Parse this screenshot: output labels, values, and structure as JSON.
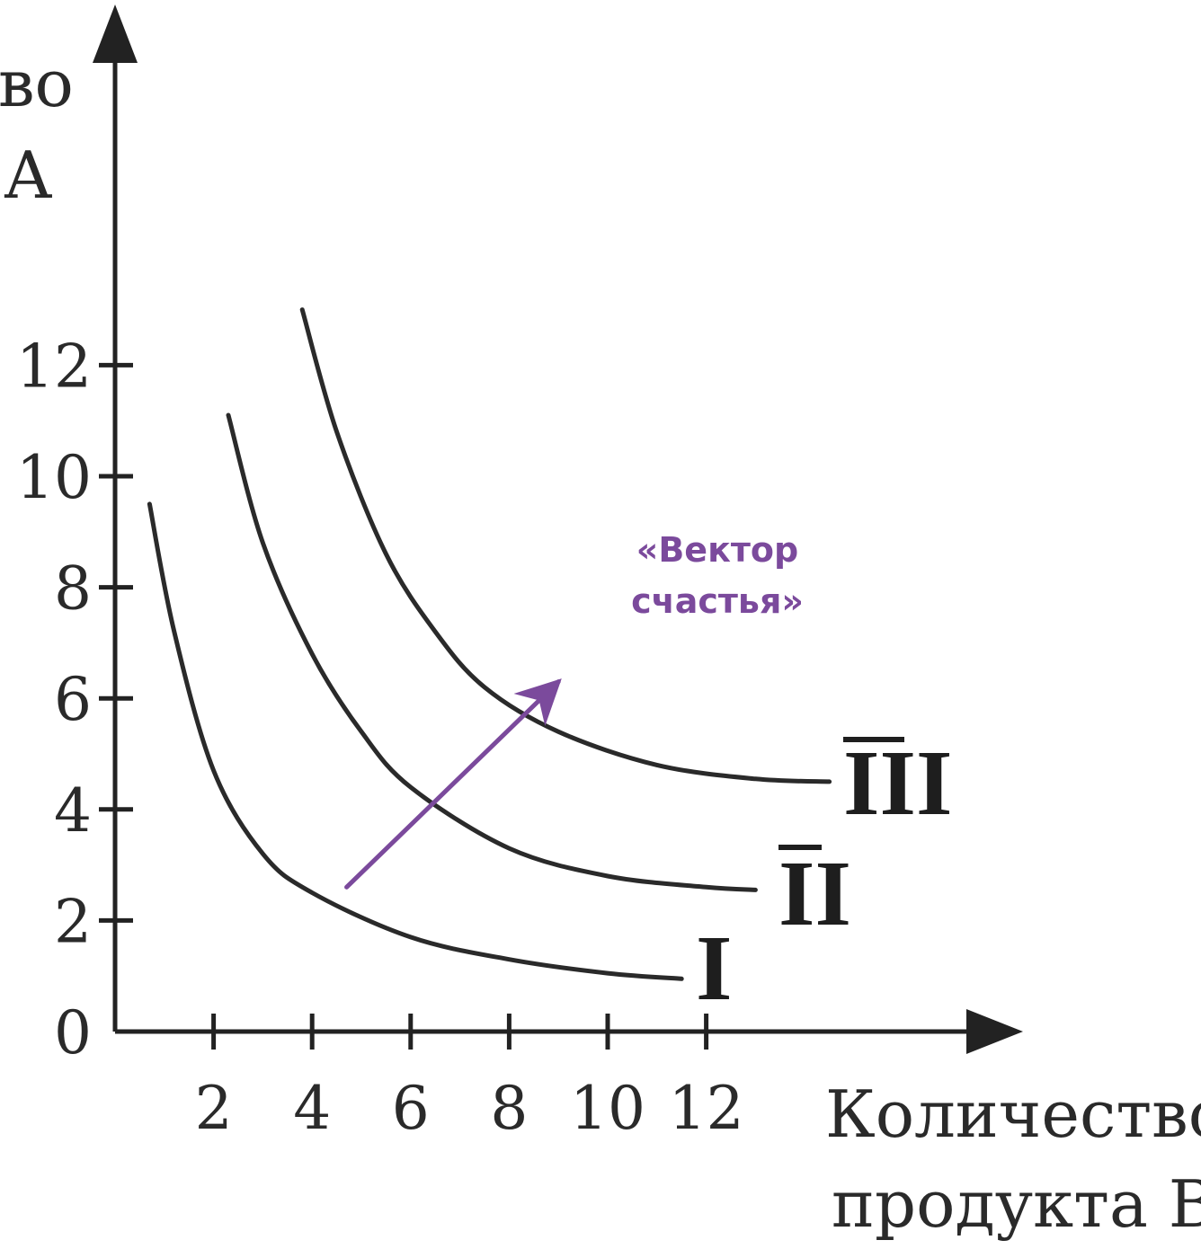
{
  "chart_data": {
    "type": "line",
    "title": "",
    "ylabel_lines": [
      "во",
      "А"
    ],
    "xlabel_lines": [
      "Количество",
      "продукта В"
    ],
    "x_ticks": [
      "2",
      "4",
      "6",
      "8",
      "10",
      "12"
    ],
    "y_ticks": [
      "0",
      "2",
      "4",
      "6",
      "8",
      "10",
      "12"
    ],
    "xlim": [
      0,
      18.5
    ],
    "ylim": [
      0,
      18
    ],
    "grid": false,
    "series": [
      {
        "name": "I",
        "points": [
          [
            0.7,
            9.5
          ],
          [
            1.2,
            7.2
          ],
          [
            2,
            4.7
          ],
          [
            3,
            3.2
          ],
          [
            4,
            2.5
          ],
          [
            6,
            1.7
          ],
          [
            8,
            1.3
          ],
          [
            10,
            1.05
          ],
          [
            11.5,
            0.95
          ]
        ]
      },
      {
        "name": "II",
        "points": [
          [
            2.3,
            11.1
          ],
          [
            3,
            8.8
          ],
          [
            4,
            6.8
          ],
          [
            5,
            5.4
          ],
          [
            6,
            4.4
          ],
          [
            8,
            3.3
          ],
          [
            10,
            2.8
          ],
          [
            12,
            2.6
          ],
          [
            13,
            2.55
          ]
        ]
      },
      {
        "name": "III",
        "points": [
          [
            3.8,
            13
          ],
          [
            4.5,
            10.8
          ],
          [
            5.5,
            8.6
          ],
          [
            6.5,
            7.2
          ],
          [
            7.5,
            6.2
          ],
          [
            9,
            5.4
          ],
          [
            11,
            4.8
          ],
          [
            13,
            4.55
          ],
          [
            14.5,
            4.5
          ]
        ]
      }
    ],
    "annotation": {
      "lines": [
        "«Вектор",
        "счастья»"
      ],
      "color": "#7b4a9c",
      "arrow_from": [
        4.7,
        2.6
      ],
      "arrow_to": [
        9,
        6.3
      ]
    }
  }
}
